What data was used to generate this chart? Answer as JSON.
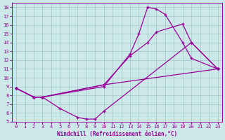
{
  "xlabel": "Windchill (Refroidissement éolien,°C)",
  "xlim": [
    -0.5,
    23.5
  ],
  "ylim": [
    5,
    18.5
  ],
  "xticks": [
    0,
    1,
    2,
    3,
    4,
    5,
    6,
    7,
    8,
    9,
    10,
    11,
    12,
    13,
    14,
    15,
    16,
    17,
    18,
    19,
    20,
    21,
    22,
    23
  ],
  "yticks": [
    5,
    6,
    7,
    8,
    9,
    10,
    11,
    12,
    13,
    14,
    15,
    16,
    17,
    18
  ],
  "background_color": "#cce8e8",
  "line_color": "#990099",
  "grid_color": "#aacccc",
  "curves": [
    {
      "x": [
        0,
        2,
        3,
        5,
        7,
        8,
        9,
        10,
        20,
        23
      ],
      "y": [
        8.8,
        7.8,
        7.8,
        6.5,
        5.5,
        5.3,
        5.3,
        6.2,
        14.0,
        11.0
      ]
    },
    {
      "x": [
        0,
        2,
        3,
        10,
        23
      ],
      "y": [
        8.8,
        7.8,
        7.8,
        9.2,
        11.0
      ]
    },
    {
      "x": [
        0,
        2,
        3,
        10,
        13,
        15,
        16,
        19,
        20,
        23
      ],
      "y": [
        8.8,
        7.8,
        7.8,
        9.2,
        12.5,
        14.0,
        15.2,
        16.1,
        14.0,
        11.0
      ]
    },
    {
      "x": [
        0,
        2,
        3,
        10,
        13,
        14,
        15,
        16,
        17,
        19,
        20,
        23
      ],
      "y": [
        8.8,
        7.8,
        7.8,
        9.0,
        12.7,
        15.0,
        18.0,
        17.8,
        17.2,
        14.0,
        12.2,
        11.0
      ]
    }
  ]
}
